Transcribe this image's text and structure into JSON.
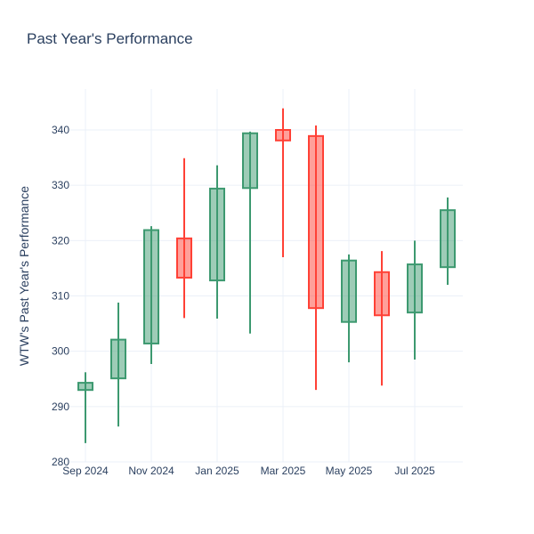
{
  "title": "Past Year's Performance",
  "chart_data": {
    "type": "candlestick",
    "title": "Past Year's Performance",
    "xlabel": "",
    "ylabel": "WTW's Past Year's Performance",
    "ylim": [
      280,
      347
    ],
    "yticks": [
      280,
      290,
      300,
      310,
      320,
      330,
      340
    ],
    "xticks": [
      {
        "label": "Sep 2024",
        "month": 0
      },
      {
        "label": "Nov 2024",
        "month": 2
      },
      {
        "label": "Jan 2025",
        "month": 4
      },
      {
        "label": "Mar 2025",
        "month": 6
      },
      {
        "label": "May 2025",
        "month": 8
      },
      {
        "label": "Jul 2025",
        "month": 10
      }
    ],
    "increasing_color": "#3d9970",
    "decreasing_color": "#ff4136",
    "candles": [
      {
        "month": 0,
        "open": 293.0,
        "high": 296.2,
        "low": 283.4,
        "close": 294.3
      },
      {
        "month": 1,
        "open": 295.1,
        "high": 308.8,
        "low": 286.4,
        "close": 302.1
      },
      {
        "month": 2,
        "open": 301.4,
        "high": 322.6,
        "low": 297.7,
        "close": 321.9
      },
      {
        "month": 3,
        "open": 320.4,
        "high": 334.9,
        "low": 306.0,
        "close": 313.3
      },
      {
        "month": 4,
        "open": 312.8,
        "high": 333.6,
        "low": 305.9,
        "close": 329.4
      },
      {
        "month": 5,
        "open": 329.5,
        "high": 339.7,
        "low": 303.2,
        "close": 339.4
      },
      {
        "month": 6,
        "open": 340.0,
        "high": 343.9,
        "low": 317.0,
        "close": 338.1
      },
      {
        "month": 7,
        "open": 338.9,
        "high": 340.8,
        "low": 293.0,
        "close": 307.8
      },
      {
        "month": 8,
        "open": 305.3,
        "high": 317.5,
        "low": 298.0,
        "close": 316.4
      },
      {
        "month": 9,
        "open": 314.3,
        "high": 318.1,
        "low": 293.8,
        "close": 306.5
      },
      {
        "month": 10,
        "open": 307.0,
        "high": 320.0,
        "low": 298.5,
        "close": 315.7
      },
      {
        "month": 11,
        "open": 315.2,
        "high": 327.8,
        "low": 312.0,
        "close": 325.5
      }
    ]
  }
}
